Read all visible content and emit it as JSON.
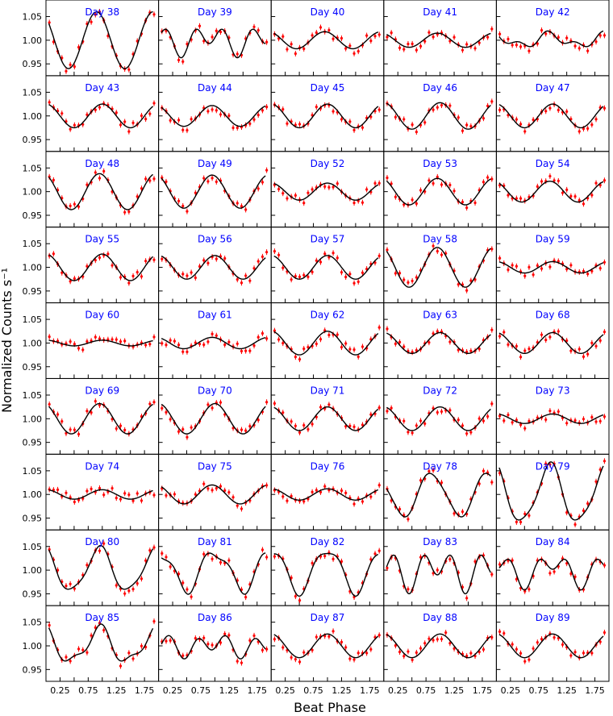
{
  "figure": {
    "ylabel": "Normalized Counts s⁻¹",
    "xlabel": "Beat Phase"
  },
  "style": {
    "title_color": "#0000ff",
    "model_color": "#000000",
    "data_color": "#ff0000"
  },
  "chart_data": {
    "type": "scatter",
    "layout": "grid",
    "rows": 9,
    "cols": 5,
    "xlim": [
      0,
      2
    ],
    "ylim": [
      0.925,
      1.085
    ],
    "x_ticks": [
      "0.25",
      "0.50",
      "0.75",
      "1.00",
      "1.25",
      "1.50",
      "1.75"
    ],
    "x_tick_labels": [
      "0.25",
      "0.75",
      "1.25",
      "1.75"
    ],
    "y_ticks": [
      "0.95",
      "1.00",
      "1.05"
    ],
    "series": [
      {
        "name": "Day 38",
        "amp1": 0.06,
        "phase1": 0.9,
        "amp2": 0.0,
        "phase2": 0.0
      },
      {
        "name": "Day 39",
        "amp1": 0.015,
        "phase1": 0.9,
        "amp2": 0.022,
        "phase2": 0.15
      },
      {
        "name": "Day 40",
        "amp1": 0.018,
        "phase1": 0.95,
        "amp2": 0.0,
        "phase2": 0.0
      },
      {
        "name": "Day 41",
        "amp1": 0.015,
        "phase1": 0.95,
        "amp2": 0.0,
        "phase2": 0.0
      },
      {
        "name": "Day 42",
        "amp1": 0.012,
        "phase1": 0.95,
        "amp2": 0.008,
        "phase2": 0.4
      },
      {
        "name": "Day 43",
        "amp1": 0.025,
        "phase1": 1.0,
        "amp2": 0.0,
        "phase2": 0.0
      },
      {
        "name": "Day 44",
        "amp1": 0.022,
        "phase1": 0.95,
        "amp2": 0.0,
        "phase2": 0.0
      },
      {
        "name": "Day 45",
        "amp1": 0.025,
        "phase1": 1.0,
        "amp2": 0.0,
        "phase2": 0.0
      },
      {
        "name": "Day 46",
        "amp1": 0.028,
        "phase1": 1.0,
        "amp2": 0.0,
        "phase2": 0.0
      },
      {
        "name": "Day 47",
        "amp1": 0.025,
        "phase1": 1.0,
        "amp2": 0.0,
        "phase2": 0.0
      },
      {
        "name": "Day 48",
        "amp1": 0.038,
        "phase1": 0.95,
        "amp2": 0.0,
        "phase2": 0.0
      },
      {
        "name": "Day 49",
        "amp1": 0.035,
        "phase1": 0.95,
        "amp2": 0.0,
        "phase2": 0.0
      },
      {
        "name": "Day 52",
        "amp1": 0.018,
        "phase1": 1.0,
        "amp2": 0.0,
        "phase2": 0.0
      },
      {
        "name": "Day 53",
        "amp1": 0.028,
        "phase1": 0.95,
        "amp2": 0.0,
        "phase2": 0.0
      },
      {
        "name": "Day 54",
        "amp1": 0.022,
        "phase1": 0.95,
        "amp2": 0.0,
        "phase2": 0.0
      },
      {
        "name": "Day 55",
        "amp1": 0.028,
        "phase1": 1.0,
        "amp2": 0.0,
        "phase2": 0.0
      },
      {
        "name": "Day 56",
        "amp1": 0.025,
        "phase1": 1.0,
        "amp2": 0.0,
        "phase2": 0.0
      },
      {
        "name": "Day 57",
        "amp1": 0.025,
        "phase1": 1.0,
        "amp2": 0.0,
        "phase2": 0.0
      },
      {
        "name": "Day 58",
        "amp1": 0.042,
        "phase1": 0.95,
        "amp2": 0.0,
        "phase2": 0.0
      },
      {
        "name": "Day 59",
        "amp1": 0.012,
        "phase1": 1.0,
        "amp2": 0.0,
        "phase2": 0.0
      },
      {
        "name": "Day 60",
        "amp1": 0.006,
        "phase1": 1.0,
        "amp2": 0.0,
        "phase2": 0.0
      },
      {
        "name": "Day 61",
        "amp1": 0.012,
        "phase1": 0.95,
        "amp2": 0.0,
        "phase2": 0.0
      },
      {
        "name": "Day 62",
        "amp1": 0.025,
        "phase1": 1.0,
        "amp2": 0.0,
        "phase2": 0.0
      },
      {
        "name": "Day 63",
        "amp1": 0.022,
        "phase1": 1.0,
        "amp2": 0.0,
        "phase2": 0.0
      },
      {
        "name": "Day 68",
        "amp1": 0.022,
        "phase1": 1.0,
        "amp2": 0.0,
        "phase2": 0.0
      },
      {
        "name": "Day 69",
        "amp1": 0.032,
        "phase1": 0.95,
        "amp2": 0.0,
        "phase2": 0.0
      },
      {
        "name": "Day 70",
        "amp1": 0.032,
        "phase1": 1.0,
        "amp2": 0.0,
        "phase2": 0.0
      },
      {
        "name": "Day 71",
        "amp1": 0.025,
        "phase1": 1.0,
        "amp2": 0.0,
        "phase2": 0.0
      },
      {
        "name": "Day 72",
        "amp1": 0.025,
        "phase1": 1.0,
        "amp2": 0.0,
        "phase2": 0.0
      },
      {
        "name": "Day 73",
        "amp1": 0.01,
        "phase1": 1.0,
        "amp2": 0.0,
        "phase2": 0.0
      },
      {
        "name": "Day 74",
        "amp1": 0.01,
        "phase1": 1.0,
        "amp2": 0.0,
        "phase2": 0.0
      },
      {
        "name": "Day 75",
        "amp1": 0.02,
        "phase1": 0.95,
        "amp2": 0.0,
        "phase2": 0.0
      },
      {
        "name": "Day 76",
        "amp1": 0.012,
        "phase1": 1.0,
        "amp2": 0.0,
        "phase2": 0.0
      },
      {
        "name": "Day 78",
        "amp1": 0.045,
        "phase1": 0.85,
        "amp2": 0.005,
        "phase2": 0.2
      },
      {
        "name": "Day 79",
        "amp1": 0.06,
        "phase1": 0.95,
        "amp2": 0.01,
        "phase2": 0.0
      },
      {
        "name": "Day 80",
        "amp1": 0.045,
        "phase1": 0.95,
        "amp2": 0.008,
        "phase2": 0.0
      },
      {
        "name": "Day 81",
        "amp1": 0.04,
        "phase1": 1.0,
        "amp2": 0.012,
        "phase2": 0.3
      },
      {
        "name": "Day 82",
        "amp1": 0.045,
        "phase1": 1.0,
        "amp2": 0.01,
        "phase2": 0.25
      },
      {
        "name": "Day 83",
        "amp1": 0.02,
        "phase1": 0.95,
        "amp2": 0.03,
        "phase2": 0.2
      },
      {
        "name": "Day 84",
        "amp1": 0.022,
        "phase1": 1.0,
        "amp2": 0.02,
        "phase2": 0.25
      },
      {
        "name": "Day 85",
        "amp1": 0.035,
        "phase1": 0.95,
        "amp2": 0.012,
        "phase2": 0.0
      },
      {
        "name": "Day 86",
        "amp1": 0.01,
        "phase1": 1.0,
        "amp2": 0.018,
        "phase2": 0.2
      },
      {
        "name": "Day 87",
        "amp1": 0.025,
        "phase1": 1.0,
        "amp2": 0.0,
        "phase2": 0.0
      },
      {
        "name": "Day 88",
        "amp1": 0.025,
        "phase1": 1.0,
        "amp2": 0.0,
        "phase2": 0.0
      },
      {
        "name": "Day 89",
        "amp1": 0.025,
        "phase1": 1.0,
        "amp2": 0.0,
        "phase2": 0.0
      }
    ]
  }
}
